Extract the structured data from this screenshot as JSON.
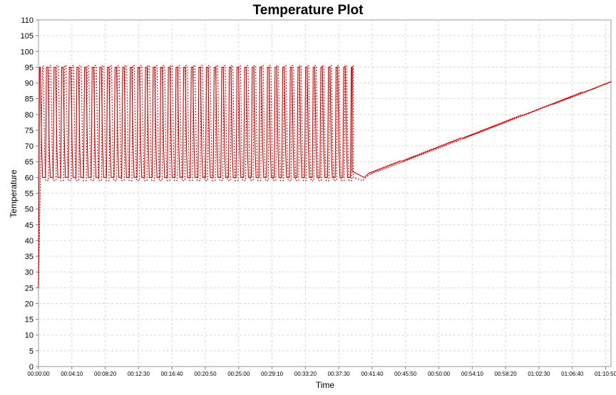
{
  "chart_data": {
    "type": "line",
    "title": "Temperature Plot",
    "xlabel": "Time",
    "ylabel": "Temperature",
    "xlim_seconds": [
      0,
      4290
    ],
    "ylim": [
      0,
      110
    ],
    "y_ticks": [
      0,
      5,
      10,
      15,
      20,
      25,
      30,
      35,
      40,
      45,
      50,
      55,
      60,
      65,
      70,
      75,
      80,
      85,
      90,
      95,
      100,
      105,
      110
    ],
    "x_ticks": [
      "00:00:00",
      "00:04:10",
      "00:08:20",
      "00:12:30",
      "00:16:40",
      "00:20:50",
      "00:25:00",
      "00:29:10",
      "00:33:20",
      "00:37:30",
      "00:41:40",
      "00:45:50",
      "00:50:00",
      "00:54:10",
      "00:58:20",
      "01:02:30",
      "01:06:40",
      "01:10:50"
    ],
    "grid": true,
    "series": [
      {
        "style": "solid",
        "color": "#cc0000",
        "cycling": {
          "start": "00:00:08",
          "end": "00:39:10",
          "low": 60,
          "high": 95,
          "cycles": 41
        },
        "x": [
          "00:00:00",
          "00:00:08",
          "00:39:10",
          "00:40:40",
          "00:41:20",
          "01:11:30"
        ],
        "y": [
          25,
          95,
          62,
          60,
          61.5,
          90.5
        ]
      },
      {
        "style": "dotted",
        "color": "#cc0000",
        "cycling": {
          "start": "00:00:30",
          "end": "00:39:20",
          "low": 59,
          "high": 95.5,
          "cycles": 41
        },
        "x": [
          "00:00:00",
          "00:00:30",
          "00:39:20",
          "00:40:30",
          "00:41:20",
          "01:11:30"
        ],
        "y": [
          25,
          95,
          60,
          59,
          61,
          90.5
        ]
      }
    ]
  }
}
